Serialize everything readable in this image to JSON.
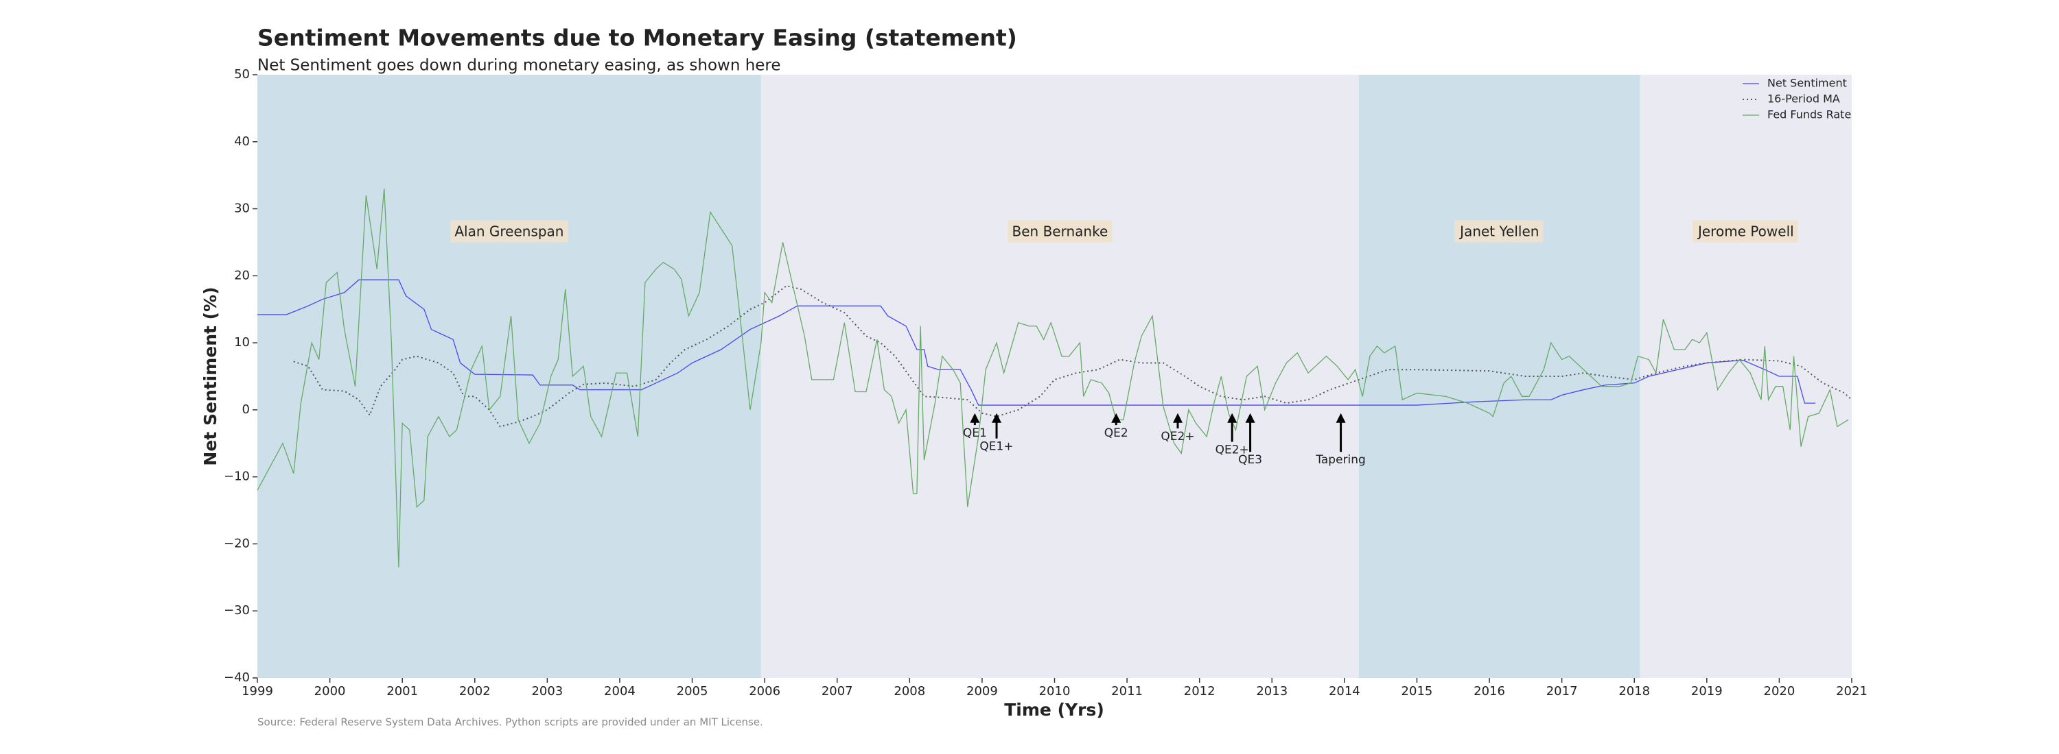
{
  "chart_data": {
    "type": "line",
    "title": "Sentiment Movements due to Monetary Easing (statement)",
    "subtitle": "Net Sentiment goes down during monetary easing, as shown here",
    "xlabel": "Time (Yrs)",
    "ylabel": "Net Sentiment (%)",
    "source": "Source: Federal Reserve System Data Archives. Python scripts are provided under an MIT License.",
    "xlim": [
      1999,
      2021
    ],
    "ylim": [
      -40,
      50
    ],
    "xticks": [
      1999,
      2000,
      2001,
      2002,
      2003,
      2004,
      2005,
      2006,
      2007,
      2008,
      2009,
      2010,
      2011,
      2012,
      2013,
      2014,
      2015,
      2016,
      2017,
      2018,
      2019,
      2020,
      2021
    ],
    "yticks": [
      {
        "value": -40,
        "label": "−40"
      },
      {
        "value": -30,
        "label": "−30"
      },
      {
        "value": -20,
        "label": "−20"
      },
      {
        "value": -10,
        "label": "−10"
      },
      0,
      10,
      20,
      30,
      40,
      50
    ],
    "legend": "upper right",
    "regions": [
      {
        "label": "Alan Greenspan",
        "start": 1999,
        "end": 2005.95,
        "color": "#cde0ea"
      },
      {
        "label": "Ben Bernanke",
        "start": 2005.95,
        "end": 2014.2,
        "color": "#eaeaf2"
      },
      {
        "label": "Janet Yellen",
        "start": 2014.2,
        "end": 2018.08,
        "color": "#cde0ea"
      },
      {
        "label": "Jerome Powell",
        "start": 2018.08,
        "end": 2021,
        "color": "#eaeaf2"
      }
    ],
    "annotations": [
      {
        "label": "QE1",
        "xy": [
          2008.9,
          -0.5
        ],
        "xytext": [
          2008.9,
          -3.5
        ]
      },
      {
        "label": "QE1+",
        "xy": [
          2009.2,
          -0.5
        ],
        "xytext": [
          2009.2,
          -5.5
        ]
      },
      {
        "label": "QE2",
        "xy": [
          2010.85,
          -0.5
        ],
        "xytext": [
          2010.85,
          -3.5
        ]
      },
      {
        "label": "QE2+",
        "xy": [
          2011.7,
          -0.5
        ],
        "xytext": [
          2011.7,
          -4
        ]
      },
      {
        "label": "QE2+",
        "xy": [
          2012.45,
          -0.5
        ],
        "xytext": [
          2012.45,
          -6
        ]
      },
      {
        "label": "QE3",
        "xy": [
          2012.7,
          -0.5
        ],
        "xytext": [
          2012.7,
          -7.5
        ]
      },
      {
        "label": "Tapering",
        "xy": [
          2013.95,
          -0.5
        ],
        "xytext": [
          2013.95,
          -7.5
        ]
      }
    ],
    "series": [
      {
        "name": "Net Sentiment",
        "color": "#4848f0",
        "style": "solid",
        "x": [
          1999,
          1999.4,
          1999.7,
          1999.9,
          2000.2,
          2000.4,
          2000.95,
          2001.05,
          2001.3,
          2001.4,
          2001.7,
          2001.8,
          2002,
          2002.8,
          2002.9,
          2003.35,
          2003.45,
          2004.3,
          2004.5,
          2004.8,
          2005,
          2005.4,
          2005.8,
          2006.2,
          2006.45,
          2007.6,
          2007.7,
          2007.95,
          2008.1,
          2008.2,
          2008.25,
          2008.4,
          2008.7,
          2008.85,
          2008.95,
          2015,
          2015.8,
          2016.5,
          2016.85,
          2017,
          2017.3,
          2017.6,
          2018,
          2018.2,
          2018.6,
          2019,
          2019.5,
          2019.8,
          2020,
          2020.25,
          2020.35,
          2020.5
        ],
        "values": [
          14.2,
          14.2,
          15.5,
          16.5,
          17.5,
          19.4,
          19.4,
          17,
          15,
          12,
          10.5,
          7,
          5.3,
          5.2,
          3.7,
          3.7,
          3,
          3,
          4,
          5.5,
          7,
          9,
          12,
          14,
          15.5,
          15.5,
          14,
          12.5,
          9,
          9,
          6.5,
          6,
          6,
          3,
          0.7,
          0.7,
          1.2,
          1.5,
          1.5,
          2.2,
          3,
          3.7,
          4,
          5,
          6,
          7,
          7.4,
          6,
          5,
          5,
          1,
          1
        ]
      },
      {
        "name": "16-Period MA",
        "color": "#555555",
        "style": "dotted",
        "x": [
          1999.5,
          1999.7,
          1999.9,
          2000.2,
          2000.4,
          2000.55,
          2000.7,
          2000.9,
          2001,
          2001.2,
          2001.5,
          2001.7,
          2001.85,
          2002,
          2002.2,
          2002.35,
          2002.6,
          2002.8,
          2003,
          2003.3,
          2003.5,
          2003.8,
          2004.2,
          2004.5,
          2004.7,
          2004.9,
          2005.2,
          2005.5,
          2005.8,
          2006,
          2006.3,
          2006.5,
          2006.8,
          2007.1,
          2007.4,
          2007.6,
          2007.8,
          2008,
          2008.2,
          2008.5,
          2008.8,
          2009,
          2009.2,
          2009.5,
          2009.8,
          2010,
          2010.3,
          2010.6,
          2010.9,
          2011.2,
          2011.5,
          2011.8,
          2012,
          2012.3,
          2012.6,
          2012.9,
          2013.2,
          2013.5,
          2013.8,
          2014.2,
          2014.6,
          2015,
          2016,
          2016.5,
          2017,
          2017.3,
          2017.6,
          2018,
          2018.3,
          2018.7,
          2019,
          2019.5,
          2020,
          2020.3,
          2020.6,
          2020.9,
          2021
        ],
        "values": [
          7.2,
          6.5,
          3,
          2.8,
          1.5,
          -0.8,
          3.5,
          6,
          7.5,
          8,
          7,
          5.5,
          2,
          2,
          0,
          -2.5,
          -1.8,
          -1,
          0,
          2.5,
          3.8,
          4,
          3.5,
          4.5,
          7,
          9,
          10.5,
          12.5,
          15,
          16,
          18.5,
          18,
          16,
          14.5,
          11,
          10,
          8,
          5,
          2,
          1.8,
          1.5,
          -0.5,
          -1,
          0,
          2,
          4.5,
          5.5,
          6,
          7.5,
          7,
          7,
          5,
          3.5,
          2,
          1.5,
          2,
          1,
          1.5,
          3,
          4.5,
          6,
          6,
          5.8,
          5,
          5,
          5.5,
          5,
          4.5,
          5.5,
          6.5,
          7,
          7.5,
          7.3,
          6.5,
          4,
          2.5,
          1.5
        ]
      },
      {
        "name": "Fed Funds Rate",
        "color": "#66aa66",
        "style": "solid",
        "x": [
          1999,
          1999.2,
          1999.35,
          1999.5,
          1999.6,
          1999.75,
          1999.85,
          1999.95,
          2000.1,
          2000.2,
          2000.35,
          2000.5,
          2000.65,
          2000.75,
          2000.85,
          2000.95,
          2001,
          2001.1,
          2001.2,
          2001.3,
          2001.35,
          2001.5,
          2001.65,
          2001.75,
          2001.95,
          2002.1,
          2002.2,
          2002.35,
          2002.5,
          2002.6,
          2002.75,
          2002.9,
          2003.05,
          2003.15,
          2003.25,
          2003.35,
          2003.5,
          2003.6,
          2003.75,
          2003.95,
          2004.1,
          2004.25,
          2004.35,
          2004.5,
          2004.6,
          2004.75,
          2004.85,
          2004.95,
          2005.1,
          2005.25,
          2005.4,
          2005.55,
          2005.7,
          2005.8,
          2005.95,
          2006,
          2006.1,
          2006.25,
          2006.4,
          2006.55,
          2006.65,
          2006.8,
          2006.95,
          2007.1,
          2007.25,
          2007.4,
          2007.55,
          2007.65,
          2007.75,
          2007.85,
          2007.95,
          2008.05,
          2008.1,
          2008.15,
          2008.2,
          2008.35,
          2008.45,
          2008.6,
          2008.7,
          2008.8,
          2008.95,
          2009.05,
          2009.2,
          2009.3,
          2009.5,
          2009.65,
          2009.75,
          2009.85,
          2009.95,
          2010.1,
          2010.2,
          2010.35,
          2010.4,
          2010.5,
          2010.65,
          2010.75,
          2010.85,
          2010.95,
          2011.1,
          2011.2,
          2011.35,
          2011.5,
          2011.65,
          2011.75,
          2011.85,
          2011.95,
          2012.1,
          2012.2,
          2012.3,
          2012.4,
          2012.5,
          2012.65,
          2012.8,
          2012.9,
          2013.05,
          2013.2,
          2013.35,
          2013.5,
          2013.6,
          2013.75,
          2013.9,
          2014.05,
          2014.15,
          2014.25,
          2014.35,
          2014.45,
          2014.55,
          2014.7,
          2014.8,
          2015,
          2015.4,
          2015.7,
          2016,
          2016.05,
          2016.2,
          2016.3,
          2016.45,
          2016.55,
          2016.75,
          2016.85,
          2017,
          2017.1,
          2017.25,
          2017.4,
          2017.55,
          2017.7,
          2017.8,
          2017.95,
          2018.05,
          2018.2,
          2018.3,
          2018.4,
          2018.55,
          2018.7,
          2018.8,
          2018.9,
          2019,
          2019.15,
          2019.3,
          2019.45,
          2019.6,
          2019.75,
          2019.8,
          2019.85,
          2019.95,
          2020.05,
          2020.15,
          2020.2,
          2020.3,
          2020.4,
          2020.55,
          2020.7,
          2020.8,
          2020.95
        ],
        "values": [
          -12,
          -8,
          -5,
          -9.5,
          1,
          10,
          7.5,
          19,
          20.5,
          12,
          3.5,
          32,
          21,
          33,
          10,
          -23.5,
          -2,
          -3,
          -14.5,
          -13.5,
          -4,
          -1,
          -4,
          -3,
          6,
          9.5,
          0,
          2,
          14,
          -1.5,
          -5,
          -2,
          5,
          7.5,
          18,
          5,
          6.5,
          -1,
          -4,
          5.5,
          5.5,
          -4,
          19,
          21,
          22,
          21,
          19.5,
          14,
          17.5,
          29.5,
          27,
          24.5,
          10,
          0,
          10,
          17.5,
          16,
          25,
          18,
          11,
          4.5,
          4.5,
          4.5,
          13,
          2.7,
          2.7,
          10.5,
          3,
          2,
          -2,
          0,
          -12.5,
          -12.5,
          12.5,
          -7.5,
          1,
          8,
          6,
          4,
          -14.5,
          -4,
          6,
          10,
          5.5,
          13,
          12.5,
          12.5,
          10.5,
          13,
          8,
          8,
          10,
          2,
          4.5,
          4,
          2.5,
          -1.5,
          -1.5,
          7,
          11,
          14,
          0.5,
          -5,
          -6.5,
          0,
          -2,
          -4,
          1,
          5,
          -0.5,
          -3,
          5,
          6.5,
          0,
          4,
          7,
          8.5,
          5.5,
          6.5,
          8,
          6.5,
          4.5,
          6,
          2,
          8,
          9.5,
          8.5,
          9.5,
          1.5,
          2.5,
          2,
          1,
          -0.5,
          -1,
          4,
          5,
          2,
          2,
          6,
          10,
          7.5,
          8,
          6.5,
          5,
          3.5,
          3.5,
          3.5,
          4,
          8,
          7.5,
          5.5,
          13.5,
          9,
          9,
          10.5,
          10,
          11.5,
          3,
          5.5,
          7.5,
          5.5,
          1.5,
          9.5,
          1.5,
          3.5,
          3.5,
          -3,
          8,
          -5.5,
          -1,
          -0.5,
          3,
          -2.5,
          -1.5
        ]
      }
    ]
  }
}
